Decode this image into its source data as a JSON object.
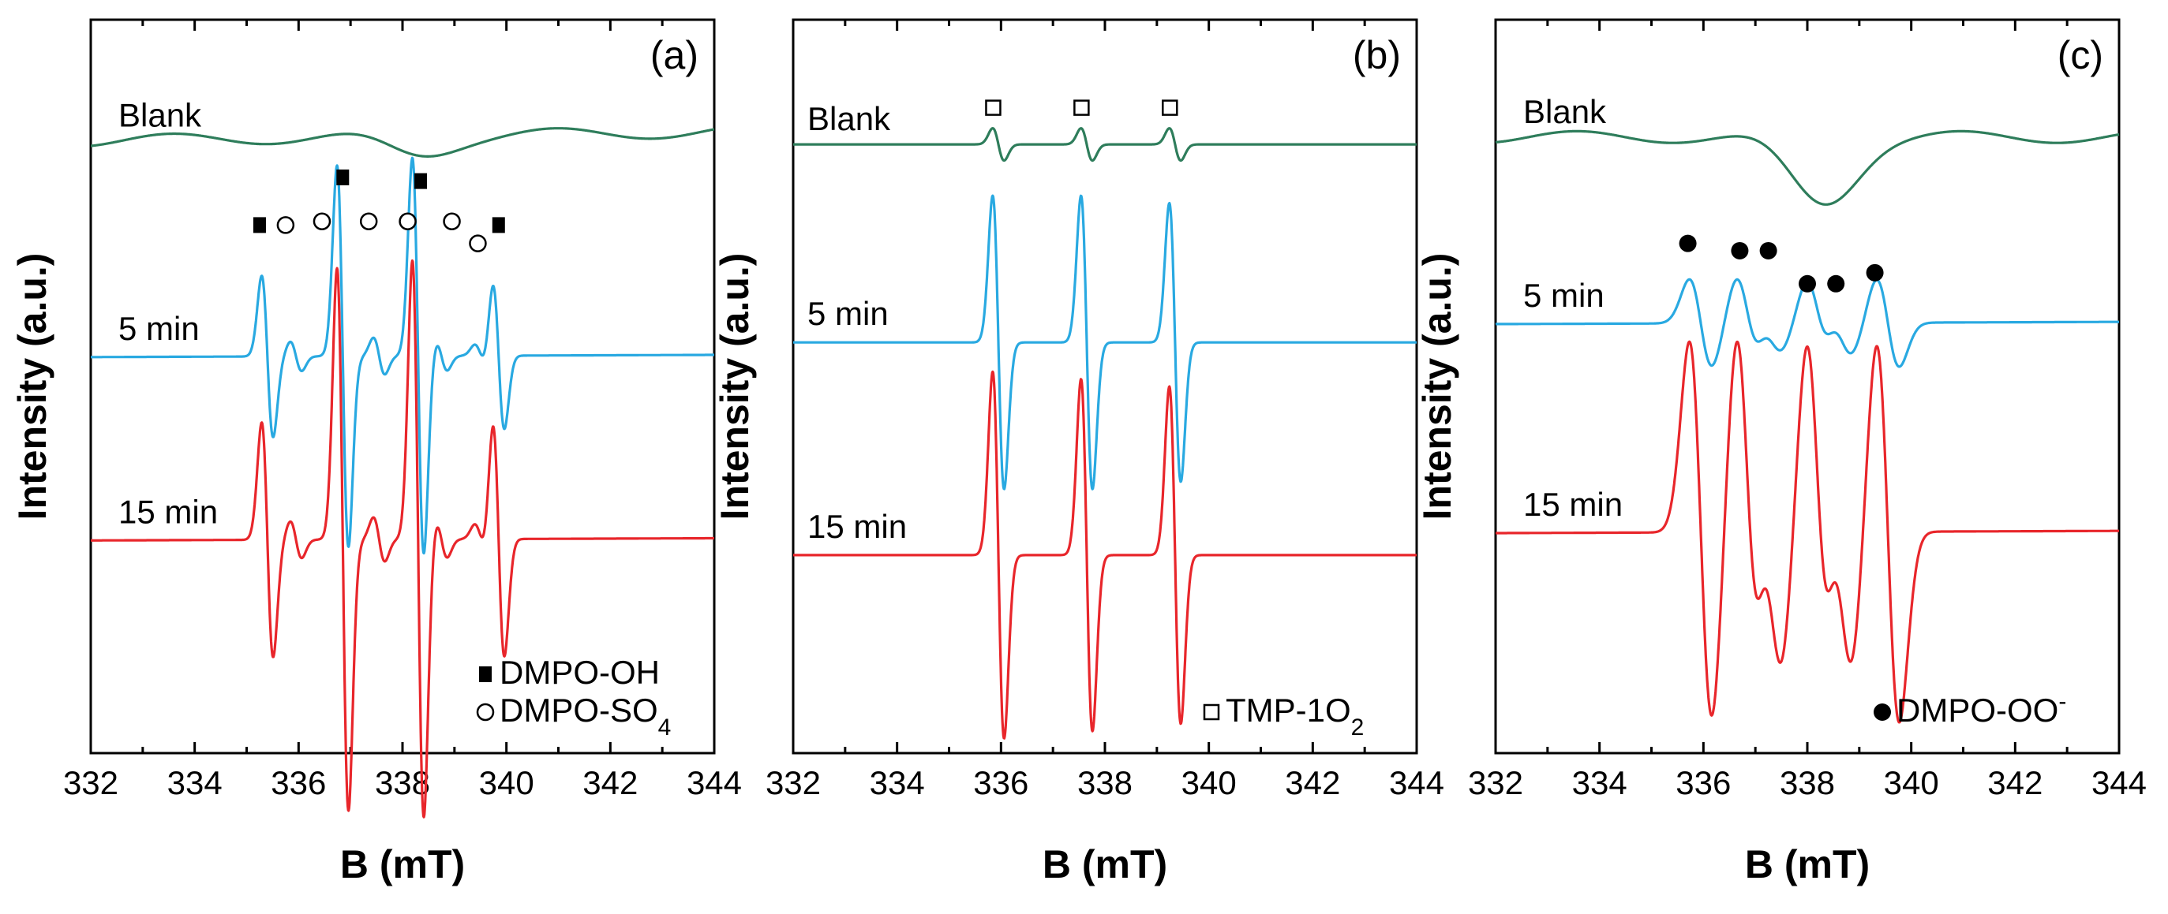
{
  "chart_data": [
    {
      "type": "line",
      "panel_label": "(a)",
      "xlabel": "B (mT)",
      "ylabel": "Intensity (a.u.)",
      "xlim": [
        332,
        344
      ],
      "x_ticks": [
        "332",
        "334",
        "336",
        "338",
        "340",
        "342",
        "344"
      ],
      "y_ticks": "none",
      "series": [
        {
          "name": "Blank",
          "color": "#2e7d5b",
          "kind": "broad",
          "baseline": 0.835,
          "dip_center": 338.3,
          "dip_depth": 0.025,
          "dip_width": 0.9,
          "slope": 0.012
        },
        {
          "name": "5 min",
          "color": "#29a9e1",
          "kind": "lines",
          "baseline": 0.54,
          "slope": 0.003,
          "peaks": [
            [
              335.4,
              0.11
            ],
            [
              335.95,
              0.02
            ],
            [
              336.85,
              0.26
            ],
            [
              337.55,
              0.025
            ],
            [
              338.3,
              0.27
            ],
            [
              338.75,
              0.02
            ],
            [
              339.5,
              0.015
            ],
            [
              339.85,
              0.1
            ]
          ],
          "linewidth": 0.11
        },
        {
          "name": "15 min",
          "color": "#e8262b",
          "kind": "lines",
          "baseline": 0.29,
          "slope": 0.003,
          "peaks": [
            [
              335.4,
              0.16
            ],
            [
              335.95,
              0.025
            ],
            [
              336.85,
              0.37
            ],
            [
              337.55,
              0.03
            ],
            [
              338.3,
              0.38
            ],
            [
              338.75,
              0.025
            ],
            [
              339.5,
              0.02
            ],
            [
              339.85,
              0.16
            ]
          ],
          "linewidth": 0.11
        }
      ],
      "annotations": [
        {
          "symbol": "filled-square",
          "x": 335.25,
          "y": 0.72
        },
        {
          "symbol": "open-circle",
          "x": 335.75,
          "y": 0.72
        },
        {
          "symbol": "open-circle",
          "x": 336.45,
          "y": 0.725
        },
        {
          "symbol": "filled-square",
          "x": 336.85,
          "y": 0.785
        },
        {
          "symbol": "open-circle",
          "x": 337.35,
          "y": 0.725
        },
        {
          "symbol": "open-circle",
          "x": 338.1,
          "y": 0.725
        },
        {
          "symbol": "filled-square",
          "x": 338.35,
          "y": 0.78
        },
        {
          "symbol": "open-circle",
          "x": 338.95,
          "y": 0.725
        },
        {
          "symbol": "open-circle",
          "x": 339.45,
          "y": 0.695
        },
        {
          "symbol": "filled-square",
          "x": 339.85,
          "y": 0.72
        }
      ],
      "legend": [
        {
          "symbol": "filled-square",
          "text": "DMPO-OH"
        },
        {
          "symbol": "open-circle",
          "text": "DMPO-SO",
          "subscript": "4"
        }
      ]
    },
    {
      "type": "line",
      "panel_label": "(b)",
      "xlabel": "B (mT)",
      "ylabel": "Intensity (a.u.)",
      "xlim": [
        332,
        344
      ],
      "x_ticks": [
        "332",
        "334",
        "336",
        "338",
        "340",
        "342",
        "344"
      ],
      "y_ticks": "none",
      "series": [
        {
          "name": "Blank",
          "color": "#2e7d5b",
          "kind": "lines",
          "baseline": 0.83,
          "slope": 0.0,
          "peaks": [
            [
              335.95,
              0.022
            ],
            [
              337.65,
              0.022
            ],
            [
              339.35,
              0.022
            ]
          ],
          "linewidth": 0.11
        },
        {
          "name": "5 min",
          "color": "#29a9e1",
          "kind": "lines",
          "baseline": 0.56,
          "slope": 0.0,
          "peaks": [
            [
              335.95,
              0.2
            ],
            [
              337.65,
              0.2
            ],
            [
              339.35,
              0.19
            ]
          ],
          "linewidth": 0.11
        },
        {
          "name": "15 min",
          "color": "#e8262b",
          "kind": "lines",
          "baseline": 0.27,
          "slope": 0.0,
          "peaks": [
            [
              335.95,
              0.25
            ],
            [
              337.65,
              0.24
            ],
            [
              339.35,
              0.23
            ]
          ],
          "linewidth": 0.11
        }
      ],
      "annotations": [
        {
          "symbol": "open-square",
          "x": 335.85,
          "y": 0.88
        },
        {
          "symbol": "open-square",
          "x": 337.55,
          "y": 0.88
        },
        {
          "symbol": "open-square",
          "x": 339.25,
          "y": 0.88
        }
      ],
      "legend": [
        {
          "symbol": "open-square",
          "text": "TMP-1O",
          "subscript": "2"
        }
      ]
    },
    {
      "type": "line",
      "panel_label": "(c)",
      "xlabel": "B (mT)",
      "ylabel": "Intensity (a.u.)",
      "xlim": [
        332,
        344
      ],
      "x_ticks": [
        "332",
        "334",
        "336",
        "338",
        "340",
        "342",
        "344"
      ],
      "y_ticks": "none",
      "series": [
        {
          "name": "Blank",
          "color": "#2e7d5b",
          "kind": "broad",
          "baseline": 0.84,
          "dip_center": 338.3,
          "dip_depth": 0.09,
          "dip_width": 0.9,
          "slope": 0.0
        },
        {
          "name": "5 min",
          "color": "#29a9e1",
          "kind": "lines",
          "baseline": 0.585,
          "slope": 0.003,
          "peaks": [
            [
              335.95,
              0.06
            ],
            [
              336.85,
              0.06
            ],
            [
              337.3,
              0.035
            ],
            [
              338.2,
              0.055
            ],
            [
              338.65,
              0.04
            ],
            [
              339.55,
              0.06
            ]
          ],
          "linewidth": 0.22
        },
        {
          "name": "15 min",
          "color": "#e8262b",
          "kind": "lines",
          "baseline": 0.3,
          "slope": 0.003,
          "peaks": [
            [
              335.95,
              0.26
            ],
            [
              336.85,
              0.26
            ],
            [
              337.3,
              0.17
            ],
            [
              338.2,
              0.25
            ],
            [
              338.65,
              0.17
            ],
            [
              339.55,
              0.26
            ]
          ],
          "linewidth": 0.22
        }
      ],
      "annotations": [
        {
          "symbol": "filled-circle",
          "x": 335.7,
          "y": 0.695
        },
        {
          "symbol": "filled-circle",
          "x": 336.7,
          "y": 0.685
        },
        {
          "symbol": "filled-circle",
          "x": 337.25,
          "y": 0.685
        },
        {
          "symbol": "filled-circle",
          "x": 338.0,
          "y": 0.64
        },
        {
          "symbol": "filled-circle",
          "x": 338.55,
          "y": 0.64
        },
        {
          "symbol": "filled-circle",
          "x": 339.3,
          "y": 0.655
        }
      ],
      "legend": [
        {
          "symbol": "filled-circle",
          "text": "DMPO-OO",
          "superscript": "-"
        }
      ]
    }
  ]
}
